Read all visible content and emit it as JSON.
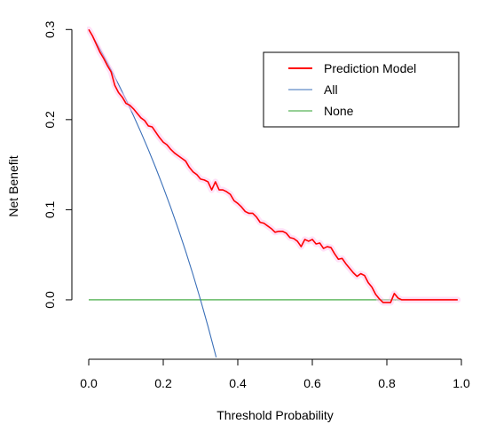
{
  "chart_data": {
    "type": "line",
    "xlabel": "Threshold Probability",
    "ylabel": "Net Benefit",
    "xlim": [
      0.0,
      1.0
    ],
    "ylim": [
      -0.066,
      0.318
    ],
    "x_ticks": [
      "0.0",
      "0.2",
      "0.4",
      "0.6",
      "0.8",
      "1.0"
    ],
    "x_tick_values": [
      0.0,
      0.2,
      0.4,
      0.6,
      0.8,
      1.0
    ],
    "y_ticks": [
      "0.0",
      "0.1",
      "0.2",
      "0.3"
    ],
    "y_tick_values": [
      0.0,
      0.1,
      0.2,
      0.3
    ],
    "grid": false,
    "legend_position": "top-right",
    "series": [
      {
        "name": "Prediction Model",
        "color": "#ff0000",
        "x": [
          0.0,
          0.01,
          0.02,
          0.03,
          0.04,
          0.05,
          0.06,
          0.07,
          0.08,
          0.09,
          0.1,
          0.11,
          0.12,
          0.13,
          0.14,
          0.15,
          0.16,
          0.17,
          0.18,
          0.19,
          0.2,
          0.21,
          0.22,
          0.23,
          0.24,
          0.25,
          0.26,
          0.27,
          0.28,
          0.29,
          0.3,
          0.31,
          0.32,
          0.33,
          0.34,
          0.35,
          0.36,
          0.37,
          0.38,
          0.39,
          0.4,
          0.41,
          0.42,
          0.43,
          0.44,
          0.45,
          0.46,
          0.47,
          0.48,
          0.49,
          0.5,
          0.51,
          0.52,
          0.53,
          0.54,
          0.55,
          0.56,
          0.57,
          0.58,
          0.59,
          0.6,
          0.61,
          0.62,
          0.63,
          0.64,
          0.65,
          0.66,
          0.67,
          0.68,
          0.69,
          0.7,
          0.71,
          0.72,
          0.73,
          0.74,
          0.75,
          0.76,
          0.77,
          0.78,
          0.79,
          0.8,
          0.81,
          0.82,
          0.83,
          0.84,
          0.85,
          0.9,
          0.95,
          0.99
        ],
        "y": [
          0.3,
          0.293,
          0.284,
          0.275,
          0.268,
          0.26,
          0.253,
          0.238,
          0.23,
          0.225,
          0.218,
          0.216,
          0.212,
          0.207,
          0.202,
          0.199,
          0.193,
          0.192,
          0.186,
          0.18,
          0.175,
          0.172,
          0.167,
          0.163,
          0.16,
          0.157,
          0.154,
          0.147,
          0.142,
          0.139,
          0.134,
          0.133,
          0.131,
          0.122,
          0.131,
          0.122,
          0.122,
          0.12,
          0.117,
          0.11,
          0.107,
          0.103,
          0.098,
          0.096,
          0.096,
          0.092,
          0.086,
          0.085,
          0.082,
          0.079,
          0.075,
          0.076,
          0.076,
          0.074,
          0.069,
          0.068,
          0.065,
          0.059,
          0.067,
          0.065,
          0.067,
          0.062,
          0.063,
          0.057,
          0.059,
          0.058,
          0.051,
          0.045,
          0.046,
          0.04,
          0.035,
          0.03,
          0.026,
          0.029,
          0.027,
          0.019,
          0.014,
          0.006,
          0.001,
          -0.003,
          -0.003,
          -0.003,
          0.007,
          0.002,
          0.0,
          0.0,
          0.0,
          0.0,
          0.0
        ]
      },
      {
        "name": "All",
        "color": "#3a6fb8",
        "curve": "y = 0.3 - 0.7 * x / (1 - x)",
        "x": [
          0.0,
          0.02,
          0.04,
          0.06,
          0.08,
          0.1,
          0.12,
          0.14,
          0.16,
          0.18,
          0.2,
          0.22,
          0.24,
          0.26,
          0.28,
          0.3,
          0.32,
          0.34,
          0.342
        ],
        "y": [
          0.3,
          0.2857,
          0.2708,
          0.2553,
          0.2391,
          0.2222,
          0.2045,
          0.186,
          0.1667,
          0.1463,
          0.125,
          0.1026,
          0.0789,
          0.0541,
          0.0278,
          0.0,
          -0.0294,
          -0.0606,
          -0.0638
        ]
      },
      {
        "name": "None",
        "color": "#2ca02c",
        "x": [
          0.0,
          0.99
        ],
        "y": [
          0.0,
          0.0
        ]
      }
    ]
  }
}
